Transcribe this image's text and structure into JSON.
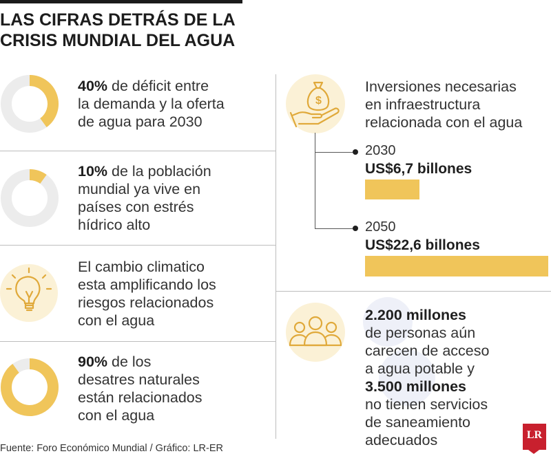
{
  "title": {
    "line1": "LAS CIFRAS DETRÁS DE LA",
    "line2": "CRISIS MUNDIAL DEL AGUA"
  },
  "colors": {
    "accent": "#f0c55a",
    "track": "#ececec",
    "icon_bg": "#fbf1d6",
    "logo": "#c8202e"
  },
  "chart_data": [
    {
      "type": "pie",
      "style": "donut",
      "values": [
        40,
        60
      ],
      "highlight": "40%",
      "text": {
        "bold": "40%",
        "rest": " de déficit entre",
        "l2": "la demanda y la oferta",
        "l3": "de agua para 2030"
      }
    },
    {
      "type": "pie",
      "style": "donut",
      "values": [
        10,
        90
      ],
      "highlight": "10%",
      "text": {
        "bold": "10%",
        "rest": " de la población",
        "l2": "mundial ya vive en",
        "l3": "países con estrés",
        "l4": "hídrico alto"
      }
    },
    {
      "type": "pie",
      "style": "donut",
      "values": [
        90,
        10
      ],
      "highlight": "90%",
      "text": {
        "bold": "90%",
        "rest": " de los",
        "l2": "desatres naturales",
        "l3": "están relacionados",
        "l4": "con el agua"
      }
    },
    {
      "type": "bar",
      "orientation": "horizontal",
      "categories": [
        "2030",
        "2050"
      ],
      "values": [
        6.7,
        22.6
      ],
      "labels": [
        "US$6,7 billones",
        "US$22,6 billones"
      ],
      "unit": "billones US$"
    }
  ],
  "climate": {
    "l1": "El cambio climatico",
    "l2": "esta amplificando los",
    "l3": "riesgos relacionados",
    "l4": "con el agua",
    "icon": "lightbulb-icon"
  },
  "investment": {
    "l1": "Inversiones necesarias",
    "l2": "en infraestructura",
    "l3": "relacionada con el agua",
    "icon": "money-bag-hand-icon"
  },
  "people": {
    "icon": "people-group-icon",
    "bold1": "2.200 millones",
    "l2": "de personas aún",
    "l3": "carecen de acceso",
    "l4": "a agua potable y",
    "bold2": "3.500 millones",
    "l6": "no tienen servicios",
    "l7": "de saneamiento",
    "l8": "adecuados"
  },
  "source": "Fuente: Foro Económico Mundial / Gráfico: LR-ER",
  "logo": "LR"
}
